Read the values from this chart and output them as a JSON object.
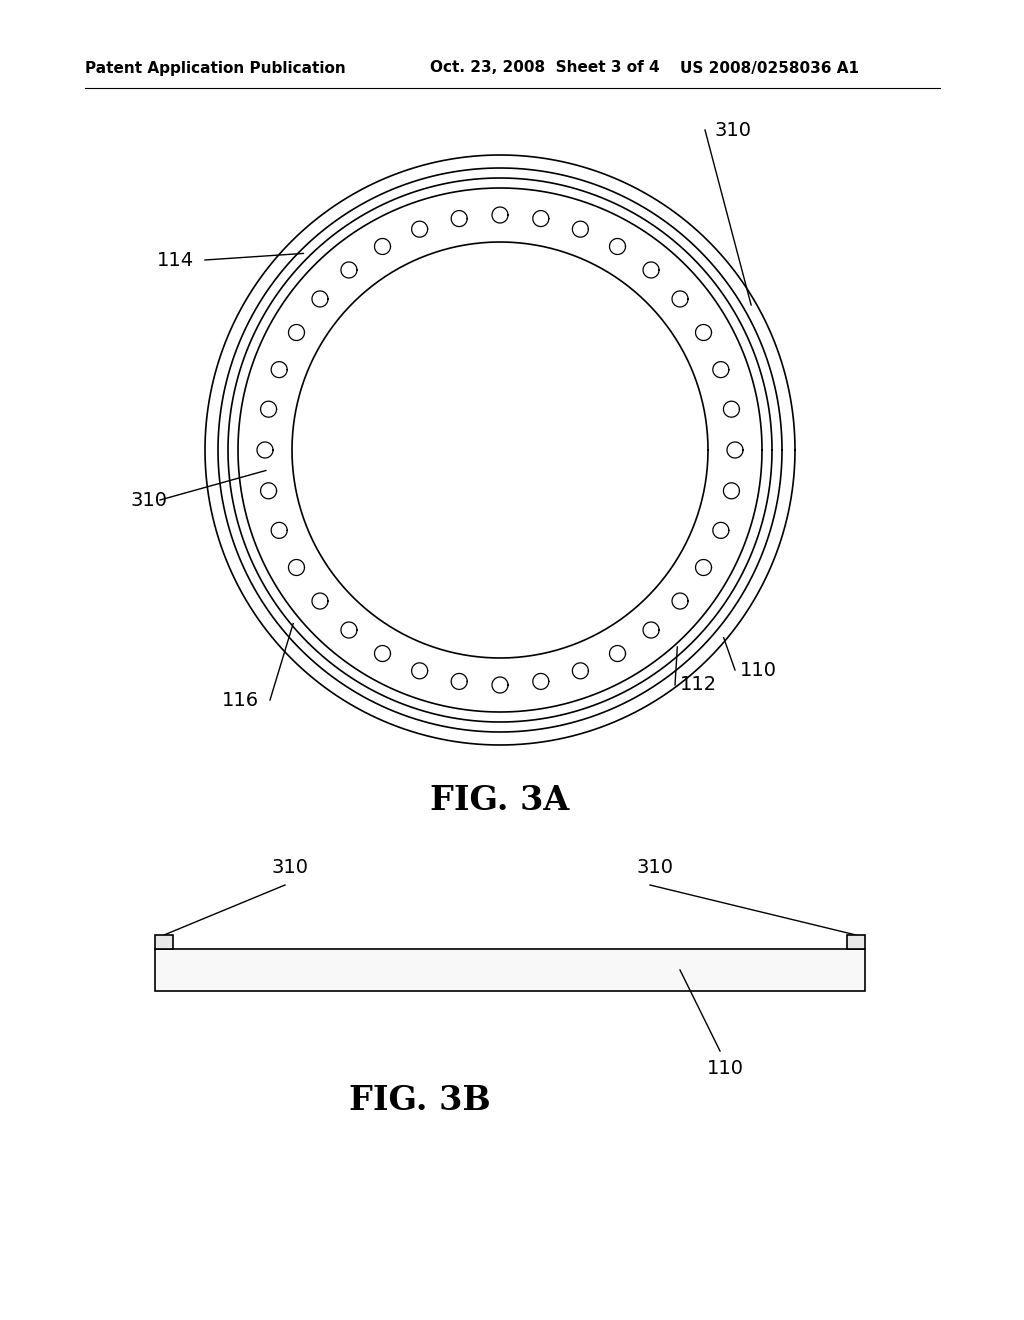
{
  "background_color": "#ffffff",
  "header_left": "Patent Application Publication",
  "header_center": "Oct. 23, 2008  Sheet 3 of 4",
  "header_right": "US 2008/0258036 A1",
  "fig3a_label": "FIG. 3A",
  "fig3b_label": "FIG. 3B",
  "line_color": "#000000",
  "line_width": 1.2,
  "text_color": "#000000",
  "label_fontsize": 14,
  "header_fontsize": 11,
  "fig_label_fontsize": 24
}
